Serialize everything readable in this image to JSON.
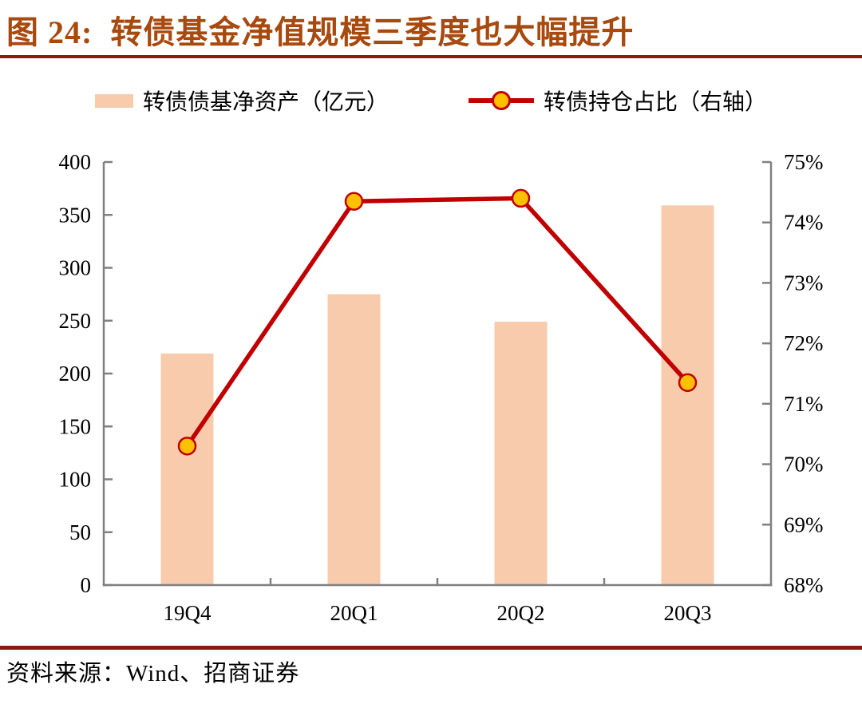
{
  "header": {
    "figure_label": "图 24:",
    "title_text": "转债基金净值规模三季度也大幅提升"
  },
  "chart_data": {
    "type": "bar",
    "combo": "bar+line",
    "title": "图 24:  转债基金净值规模三季度也大幅提升",
    "categories": [
      "19Q4",
      "20Q1",
      "20Q2",
      "20Q3"
    ],
    "series": [
      {
        "name": "转债债基净资产（亿元）",
        "type": "bar",
        "axis": "left",
        "values": [
          219,
          275,
          249,
          359
        ],
        "color": "#F8CBAD"
      },
      {
        "name": "转债持仓占比（右轴）",
        "type": "line",
        "axis": "right",
        "values": [
          70.3,
          74.35,
          74.4,
          71.35
        ],
        "color": "#C00000",
        "marker_color": "#FFC000"
      }
    ],
    "left_axis": {
      "min": 0,
      "max": 400,
      "step": 50
    },
    "right_axis": {
      "min": 68,
      "max": 75,
      "step": 1,
      "suffix": "%"
    },
    "legend_position": "top",
    "grid": "off",
    "axis_color": "#808080",
    "source": "资料来源：Wind、招商证券"
  },
  "footer": {}
}
